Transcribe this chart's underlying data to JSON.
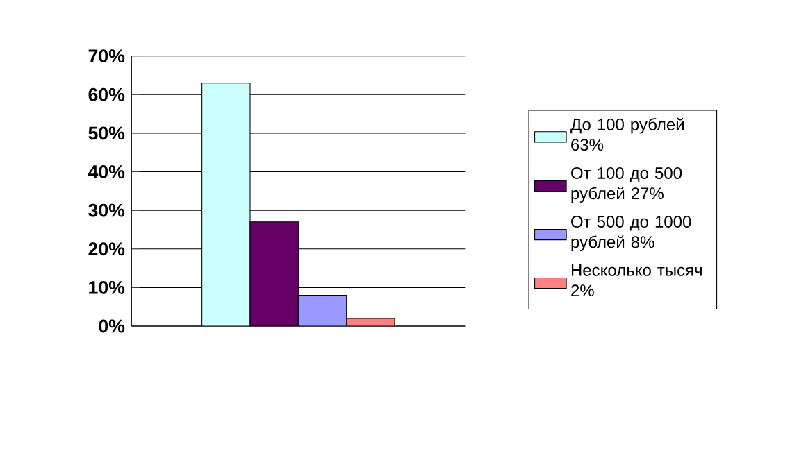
{
  "chart_data": {
    "type": "bar",
    "categories": [
      null
    ],
    "series": [
      {
        "name": "До 100 рублей 63%",
        "color": "#ccffff",
        "values": [
          63
        ]
      },
      {
        "name": "От 100 до 500 рублей 27%",
        "color": "#660066",
        "values": [
          27
        ]
      },
      {
        "name": "От 500 до 1000 рублей 8%",
        "color": "#9999ff",
        "values": [
          8
        ]
      },
      {
        "name": "Несколько тысяч 2%",
        "color": "#ff8080",
        "values": [
          2
        ]
      }
    ],
    "ylim": [
      0,
      70
    ],
    "yticks": [
      {
        "value": 0,
        "label": "0%"
      },
      {
        "value": 10,
        "label": "10%"
      },
      {
        "value": 20,
        "label": "20%"
      },
      {
        "value": 30,
        "label": "30%"
      },
      {
        "value": 40,
        "label": "40%"
      },
      {
        "value": 50,
        "label": "50%"
      },
      {
        "value": 60,
        "label": "60%"
      },
      {
        "value": 70,
        "label": "70%"
      }
    ],
    "grid": "y",
    "legend": "right"
  }
}
